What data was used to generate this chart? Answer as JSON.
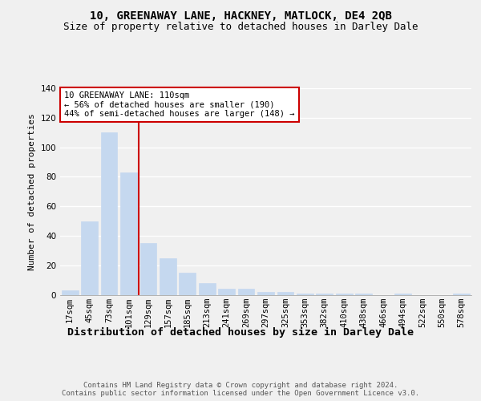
{
  "title": "10, GREENAWAY LANE, HACKNEY, MATLOCK, DE4 2QB",
  "subtitle": "Size of property relative to detached houses in Darley Dale",
  "xlabel": "Distribution of detached houses by size in Darley Dale",
  "ylabel": "Number of detached properties",
  "categories": [
    "17sqm",
    "45sqm",
    "73sqm",
    "101sqm",
    "129sqm",
    "157sqm",
    "185sqm",
    "213sqm",
    "241sqm",
    "269sqm",
    "297sqm",
    "325sqm",
    "353sqm",
    "382sqm",
    "410sqm",
    "438sqm",
    "466sqm",
    "494sqm",
    "522sqm",
    "550sqm",
    "578sqm"
  ],
  "values": [
    3,
    50,
    110,
    83,
    35,
    25,
    15,
    8,
    4,
    4,
    2,
    2,
    1,
    1,
    1,
    1,
    0,
    1,
    0,
    0,
    1
  ],
  "bar_color": "#c5d8ef",
  "bar_edgecolor": "#c5d8ef",
  "vline_x": 3.5,
  "vline_color": "#cc0000",
  "annotation_text": "10 GREENAWAY LANE: 110sqm\n← 56% of detached houses are smaller (190)\n44% of semi-detached houses are larger (148) →",
  "annotation_box_edgecolor": "#cc0000",
  "annotation_box_facecolor": "#ffffff",
  "footer": "Contains HM Land Registry data © Crown copyright and database right 2024.\nContains public sector information licensed under the Open Government Licence v3.0.",
  "ylim": [
    0,
    140
  ],
  "yticks": [
    0,
    20,
    40,
    60,
    80,
    100,
    120,
    140
  ],
  "title_fontsize": 10,
  "subtitle_fontsize": 9,
  "ylabel_fontsize": 8,
  "xlabel_fontsize": 9.5,
  "tick_fontsize": 7.5,
  "annotation_fontsize": 7.5,
  "footer_fontsize": 6.5,
  "background_color": "#f0f0f0"
}
